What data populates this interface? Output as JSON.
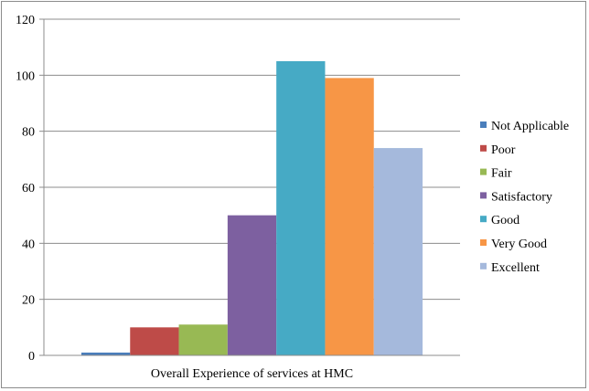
{
  "chart_data": {
    "type": "bar",
    "title": "",
    "xlabel": "",
    "ylabel": "",
    "categories": [
      "Overall Experience of services at HMC"
    ],
    "series": [
      {
        "name": "Not Applicable",
        "values": [
          1
        ],
        "color": "#4a7ebb"
      },
      {
        "name": "Poor",
        "values": [
          10
        ],
        "color": "#be4b48"
      },
      {
        "name": "Fair",
        "values": [
          11
        ],
        "color": "#98b954"
      },
      {
        "name": "Satisfactory",
        "values": [
          50
        ],
        "color": "#7d60a0"
      },
      {
        "name": "Good",
        "values": [
          105
        ],
        "color": "#46aac5"
      },
      {
        "name": "Very Good",
        "values": [
          99
        ],
        "color": "#f79646"
      },
      {
        "name": "Excellent",
        "values": [
          74
        ],
        "color": "#a5b9dc"
      }
    ],
    "ylim": [
      0,
      120
    ],
    "yticks": [
      "0",
      "20",
      "40",
      "60",
      "80",
      "100",
      "120"
    ],
    "grid": true,
    "legend": "right"
  }
}
